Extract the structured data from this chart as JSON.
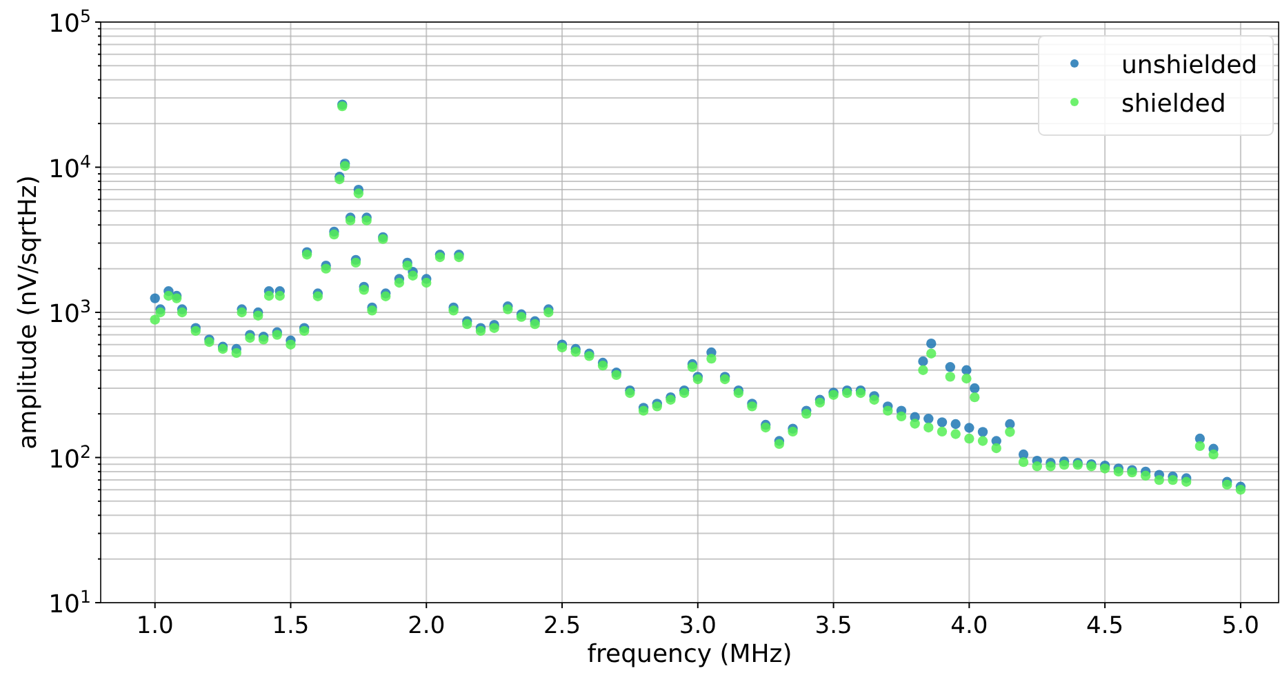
{
  "chart_data": {
    "type": "scatter",
    "xlabel": "frequency (MHz)",
    "ylabel": "amplitude (nV/sqrtHz)",
    "log": "y",
    "grid": true,
    "legend": "top right",
    "marker": "circle",
    "xlim": [
      0.8,
      5.14
    ],
    "ylim": [
      10,
      100000
    ],
    "xticks": [
      {
        "value": 1,
        "label": "1.0"
      },
      {
        "value": 1.5,
        "label": "1.5"
      },
      {
        "value": 2,
        "label": "2.0"
      },
      {
        "value": 2.5,
        "label": "2.5"
      },
      {
        "value": 3,
        "label": "3.0"
      },
      {
        "value": 3.5,
        "label": "3.5"
      },
      {
        "value": 4,
        "label": "4.0"
      },
      {
        "value": 4.5,
        "label": "4.5"
      },
      {
        "value": 5,
        "label": "5.0"
      }
    ],
    "yticks": [
      {
        "value": 10,
        "label": "10$^{1}$"
      },
      {
        "value": 20,
        "label": null
      },
      {
        "value": 30,
        "label": null
      },
      {
        "value": 40,
        "label": null
      },
      {
        "value": 50,
        "label": null
      },
      {
        "value": 60,
        "label": null
      },
      {
        "value": 70,
        "label": null
      },
      {
        "value": 80,
        "label": null
      },
      {
        "value": 90,
        "label": null
      },
      {
        "value": 100,
        "label": "10$^{2}$"
      },
      {
        "value": 200,
        "label": null
      },
      {
        "value": 300,
        "label": null
      },
      {
        "value": 400,
        "label": null
      },
      {
        "value": 500,
        "label": null
      },
      {
        "value": 600,
        "label": null
      },
      {
        "value": 700,
        "label": null
      },
      {
        "value": 800,
        "label": null
      },
      {
        "value": 900,
        "label": null
      },
      {
        "value": 1000,
        "label": "10$^{3}$"
      },
      {
        "value": 2000,
        "label": null
      },
      {
        "value": 3000,
        "label": null
      },
      {
        "value": 4000,
        "label": null
      },
      {
        "value": 5000,
        "label": null
      },
      {
        "value": 6000,
        "label": null
      },
      {
        "value": 7000,
        "label": null
      },
      {
        "value": 8000,
        "label": null
      },
      {
        "value": 9000,
        "label": null
      },
      {
        "value": 10000,
        "label": "10$^{4}$"
      },
      {
        "value": 20000,
        "label": null
      },
      {
        "value": 30000,
        "label": null
      },
      {
        "value": 40000,
        "label": null
      },
      {
        "value": 50000,
        "label": null
      },
      {
        "value": 60000,
        "label": null
      },
      {
        "value": 70000,
        "label": null
      },
      {
        "value": 80000,
        "label": null
      },
      {
        "value": 90000,
        "label": null
      },
      {
        "value": 100000,
        "label": "10$^{5}$"
      }
    ],
    "series": [
      {
        "name": "unshielded",
        "color": "#1f77b4",
        "x": [
          1.0,
          1.02,
          1.05,
          1.08,
          1.1,
          1.15,
          1.2,
          1.25,
          1.3,
          1.32,
          1.35,
          1.38,
          1.4,
          1.42,
          1.45,
          1.46,
          1.5,
          1.55,
          1.56,
          1.6,
          1.63,
          1.66,
          1.68,
          1.69,
          1.7,
          1.72,
          1.74,
          1.75,
          1.77,
          1.78,
          1.8,
          1.84,
          1.85,
          1.9,
          1.93,
          1.95,
          2.0,
          2.05,
          2.1,
          2.12,
          2.15,
          2.2,
          2.25,
          2.3,
          2.35,
          2.4,
          2.45,
          2.5,
          2.55,
          2.6,
          2.65,
          2.7,
          2.75,
          2.8,
          2.85,
          2.9,
          2.95,
          2.98,
          3.0,
          3.05,
          3.1,
          3.15,
          3.2,
          3.25,
          3.3,
          3.35,
          3.4,
          3.45,
          3.5,
          3.55,
          3.6,
          3.65,
          3.7,
          3.75,
          3.8,
          3.83,
          3.85,
          3.86,
          3.9,
          3.93,
          3.95,
          3.99,
          4.0,
          4.02,
          4.05,
          4.1,
          4.15,
          4.2,
          4.25,
          4.3,
          4.35,
          4.4,
          4.45,
          4.5,
          4.55,
          4.6,
          4.65,
          4.7,
          4.75,
          4.8,
          4.85,
          4.9,
          4.95,
          5.0
        ],
        "values": [
          1250,
          1050,
          1400,
          1300,
          1050,
          780,
          650,
          580,
          560,
          1050,
          700,
          1000,
          680,
          1400,
          730,
          1400,
          640,
          780,
          2600,
          1350,
          2100,
          3600,
          8600,
          27000,
          10600,
          4500,
          2300,
          7000,
          1500,
          4500,
          1080,
          3300,
          1350,
          1700,
          2200,
          1900,
          1700,
          2500,
          1080,
          2500,
          870,
          780,
          820,
          1100,
          970,
          870,
          1050,
          600,
          560,
          520,
          450,
          385,
          290,
          220,
          235,
          260,
          290,
          440,
          360,
          530,
          360,
          290,
          235,
          168,
          130,
          158,
          210,
          250,
          280,
          290,
          290,
          265,
          225,
          210,
          190,
          460,
          185,
          610,
          175,
          420,
          170,
          400,
          160,
          300,
          150,
          130,
          170,
          105,
          95,
          92,
          94,
          92,
          90,
          88,
          84,
          82,
          80,
          76,
          74,
          72,
          135,
          115,
          68,
          63
        ]
      },
      {
        "name": "shielded",
        "color": "#55ee55",
        "x": [
          1.0,
          1.02,
          1.05,
          1.08,
          1.1,
          1.15,
          1.2,
          1.25,
          1.3,
          1.32,
          1.35,
          1.38,
          1.4,
          1.42,
          1.45,
          1.46,
          1.5,
          1.55,
          1.56,
          1.6,
          1.63,
          1.66,
          1.68,
          1.69,
          1.7,
          1.72,
          1.74,
          1.75,
          1.77,
          1.78,
          1.8,
          1.84,
          1.85,
          1.9,
          1.93,
          1.95,
          2.0,
          2.05,
          2.1,
          2.12,
          2.15,
          2.2,
          2.25,
          2.3,
          2.35,
          2.4,
          2.45,
          2.5,
          2.55,
          2.6,
          2.65,
          2.7,
          2.75,
          2.8,
          2.85,
          2.9,
          2.95,
          2.98,
          3.0,
          3.05,
          3.1,
          3.15,
          3.2,
          3.25,
          3.3,
          3.35,
          3.4,
          3.45,
          3.5,
          3.55,
          3.6,
          3.65,
          3.7,
          3.75,
          3.8,
          3.83,
          3.85,
          3.86,
          3.9,
          3.93,
          3.95,
          3.99,
          4.0,
          4.02,
          4.05,
          4.1,
          4.15,
          4.2,
          4.25,
          4.3,
          4.35,
          4.4,
          4.45,
          4.5,
          4.55,
          4.6,
          4.65,
          4.7,
          4.75,
          4.8,
          4.85,
          4.9,
          4.95,
          5.0
        ],
        "values": [
          890,
          1000,
          1300,
          1250,
          1000,
          745,
          625,
          560,
          525,
          1000,
          667,
          950,
          650,
          1300,
          700,
          1300,
          600,
          745,
          2500,
          1290,
          2000,
          3440,
          8260,
          26300,
          10200,
          4300,
          2200,
          6600,
          1430,
          4300,
          1030,
          3200,
          1290,
          1600,
          2100,
          1790,
          1600,
          2400,
          1030,
          2400,
          830,
          745,
          780,
          1050,
          930,
          830,
          1000,
          573,
          535,
          500,
          430,
          370,
          278,
          210,
          225,
          250,
          278,
          420,
          346,
          480,
          346,
          278,
          225,
          161,
          124,
          151,
          200,
          239,
          270,
          278,
          278,
          250,
          210,
          192,
          171,
          400,
          161,
          520,
          151,
          360,
          145,
          350,
          135,
          260,
          130,
          116,
          150,
          93,
          87,
          87,
          89,
          89,
          87,
          84,
          80,
          79,
          75,
          70,
          70,
          68,
          120,
          105,
          65,
          60
        ]
      }
    ]
  }
}
